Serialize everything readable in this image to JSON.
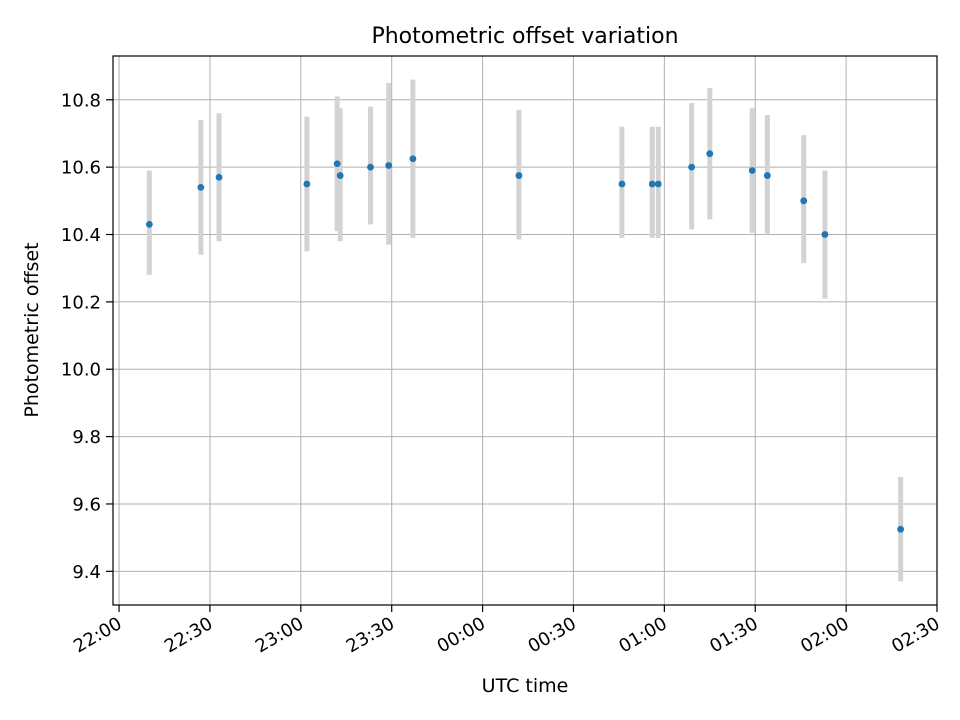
{
  "chart_data": {
    "type": "scatter",
    "title": "Photometric offset variation",
    "xlabel": "UTC time",
    "ylabel": "Photometric offset",
    "x_unit": "time of day (UTC), crossing midnight",
    "xlim": [
      "21:58",
      "02:30"
    ],
    "ylim": [
      9.3,
      10.93
    ],
    "x_ticks": [
      "22:00",
      "22:30",
      "23:00",
      "23:30",
      "00:00",
      "00:30",
      "01:00",
      "01:30",
      "02:00",
      "02:30"
    ],
    "y_ticks": [
      "9.4",
      "9.6",
      "9.8",
      "10.0",
      "10.2",
      "10.4",
      "10.6",
      "10.8"
    ],
    "y_tick_values": [
      9.4,
      9.6,
      9.8,
      10.0,
      10.2,
      10.4,
      10.6,
      10.8
    ],
    "grid": true,
    "marker_color": "#1f77b4",
    "errorbar_color": "#d3d3d3",
    "points": [
      {
        "t": "22:10",
        "y": 10.43,
        "lo": 10.28,
        "hi": 10.59
      },
      {
        "t": "22:27",
        "y": 10.54,
        "lo": 10.34,
        "hi": 10.74
      },
      {
        "t": "22:33",
        "y": 10.57,
        "lo": 10.38,
        "hi": 10.76
      },
      {
        "t": "23:02",
        "y": 10.55,
        "lo": 10.35,
        "hi": 10.75
      },
      {
        "t": "23:12",
        "y": 10.61,
        "lo": 10.41,
        "hi": 10.81
      },
      {
        "t": "23:13",
        "y": 10.575,
        "lo": 10.38,
        "hi": 10.775
      },
      {
        "t": "23:23",
        "y": 10.6,
        "lo": 10.43,
        "hi": 10.78
      },
      {
        "t": "23:29",
        "y": 10.605,
        "lo": 10.37,
        "hi": 10.85
      },
      {
        "t": "23:37",
        "y": 10.625,
        "lo": 10.39,
        "hi": 10.86
      },
      {
        "t": "00:12",
        "y": 10.575,
        "lo": 10.385,
        "hi": 10.77
      },
      {
        "t": "00:46",
        "y": 10.55,
        "lo": 10.39,
        "hi": 10.72
      },
      {
        "t": "00:56",
        "y": 10.55,
        "lo": 10.39,
        "hi": 10.72
      },
      {
        "t": "00:58",
        "y": 10.55,
        "lo": 10.39,
        "hi": 10.72
      },
      {
        "t": "01:09",
        "y": 10.6,
        "lo": 10.415,
        "hi": 10.79
      },
      {
        "t": "01:15",
        "y": 10.64,
        "lo": 10.445,
        "hi": 10.835
      },
      {
        "t": "01:29",
        "y": 10.59,
        "lo": 10.405,
        "hi": 10.775
      },
      {
        "t": "01:34",
        "y": 10.575,
        "lo": 10.4,
        "hi": 10.755
      },
      {
        "t": "01:46",
        "y": 10.5,
        "lo": 10.315,
        "hi": 10.695
      },
      {
        "t": "01:53",
        "y": 10.4,
        "lo": 10.21,
        "hi": 10.59
      },
      {
        "t": "02:18",
        "y": 9.525,
        "lo": 9.37,
        "hi": 9.68
      }
    ]
  }
}
